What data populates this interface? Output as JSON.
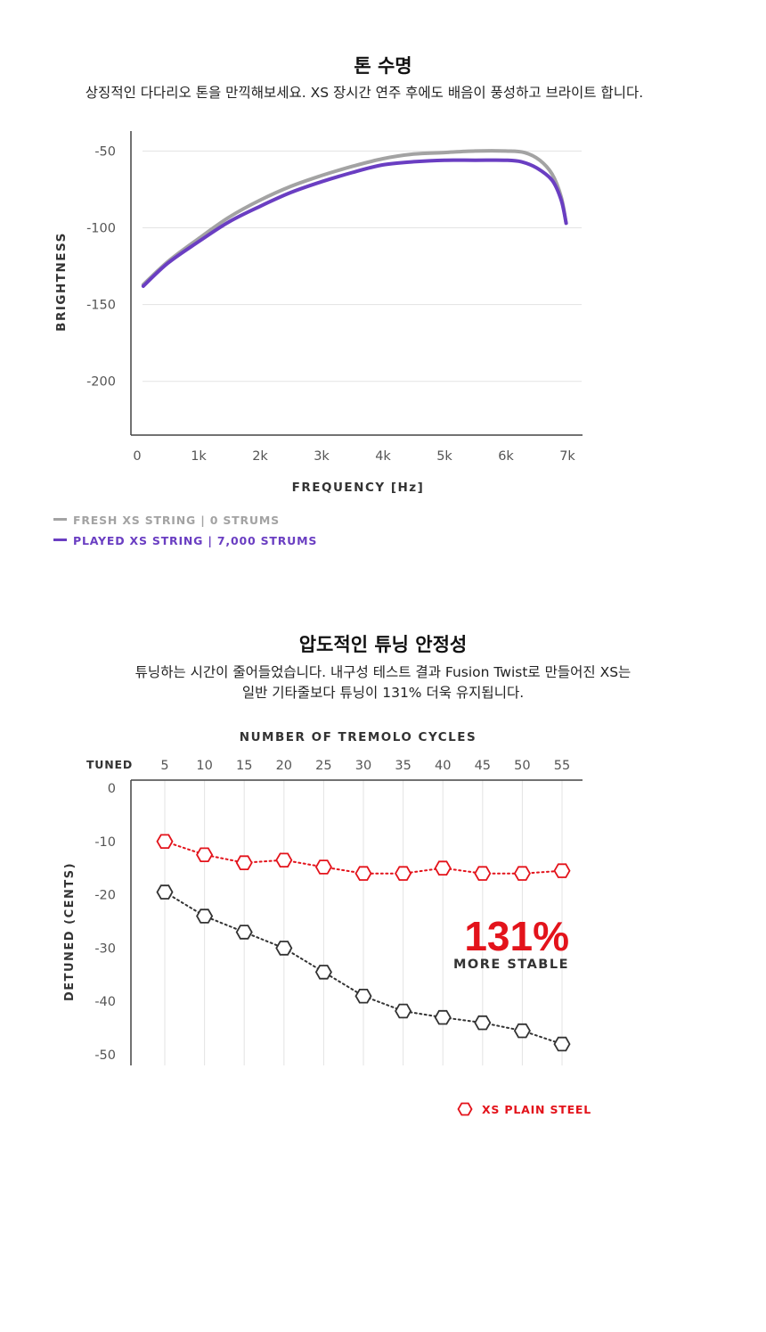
{
  "section1": {
    "title": "톤 수명",
    "description": "상징적인 다다리오 톤을 만끽해보세요. XS 장시간 연주 후에도 배음이 풍성하고 브라이트 합니다."
  },
  "section2": {
    "title": "압도적인 튜닝 안정성",
    "description_line1": "튜닝하는 시간이 줄어들었습니다. 내구성 테스트 결과 Fusion Twist로 만들어진 XS는",
    "description_line2": "일반 기타줄보다 튜닝이 131% 더욱 유지됩니다."
  },
  "colors": {
    "fresh": "#a3a3a3",
    "played": "#6a3ec2",
    "xs": "#e3131b",
    "plain": "#333333",
    "grid": "#e3e3e3",
    "axis": "#444444"
  },
  "chart_data": [
    {
      "type": "line",
      "xlabel": "FREQUENCY [Hz]",
      "ylabel": "BRIGHTNESS",
      "xlim": [
        0,
        7000
      ],
      "ylim": [
        -235,
        -37
      ],
      "x_ticks": [
        0,
        1000,
        2000,
        3000,
        4000,
        5000,
        6000,
        7000
      ],
      "x_tick_labels": [
        "0",
        "1k",
        "2k",
        "3k",
        "4k",
        "5k",
        "6k",
        "7k"
      ],
      "y_ticks": [
        -50,
        -100,
        -150,
        -200
      ],
      "y_tick_labels": [
        "-50",
        "-100",
        "-150",
        "-200"
      ],
      "grid": true,
      "legend_position": "bottom-left",
      "series": [
        {
          "name": "FRESH XS STRING | 0 STRUMS",
          "color_key": "fresh",
          "points": [
            [
              100,
              -137
            ],
            [
              500,
              -122
            ],
            [
              1000,
              -107
            ],
            [
              1500,
              -93
            ],
            [
              2000,
              -82
            ],
            [
              2500,
              -73
            ],
            [
              3000,
              -66
            ],
            [
              3500,
              -60
            ],
            [
              4000,
              -55
            ],
            [
              4500,
              -52
            ],
            [
              5000,
              -51
            ],
            [
              5500,
              -50
            ],
            [
              6000,
              -50
            ],
            [
              6300,
              -51
            ],
            [
              6550,
              -56
            ],
            [
              6750,
              -65
            ],
            [
              6900,
              -80
            ],
            [
              6980,
              -97
            ]
          ]
        },
        {
          "name": "PLAYED XS STRING | 7,000 STRUMS",
          "color_key": "played",
          "points": [
            [
              100,
              -138
            ],
            [
              500,
              -123
            ],
            [
              1000,
              -109
            ],
            [
              1500,
              -96
            ],
            [
              2000,
              -86
            ],
            [
              2500,
              -77
            ],
            [
              3000,
              -70
            ],
            [
              3500,
              -64
            ],
            [
              4000,
              -59
            ],
            [
              4500,
              -57
            ],
            [
              5000,
              -56
            ],
            [
              5500,
              -56
            ],
            [
              6000,
              -56
            ],
            [
              6250,
              -57
            ],
            [
              6500,
              -61
            ],
            [
              6750,
              -69
            ],
            [
              6900,
              -82
            ],
            [
              6980,
              -97
            ]
          ]
        }
      ]
    },
    {
      "type": "line",
      "title": "NUMBER OF TREMOLO CYCLES",
      "ylabel": "DETUNED (CENTS)",
      "x_first_label": "TUNED",
      "categories": [
        5,
        10,
        15,
        20,
        25,
        30,
        35,
        40,
        45,
        50,
        55
      ],
      "ylim": [
        -52,
        1.5
      ],
      "y_ticks": [
        0,
        -10,
        -20,
        -30,
        -40,
        -50
      ],
      "y_tick_labels": [
        "0",
        "-10",
        "-20",
        "-30",
        "-40",
        "-50"
      ],
      "grid": true,
      "legend_position": "bottom-right",
      "annotation": {
        "value": "131%",
        "subtitle": "MORE STABLE"
      },
      "series": [
        {
          "name": "XS PLAIN STEEL",
          "color_key": "xs",
          "values": [
            -10,
            -12.5,
            -14,
            -13.5,
            -14.8,
            -16,
            -16,
            -15,
            -16,
            -16,
            -15.5
          ]
        },
        {
          "color_key": "plain",
          "values": [
            -19.5,
            -24,
            -27,
            -30,
            -34.5,
            -39,
            -41.8,
            -43,
            -44,
            -45.5,
            -48
          ]
        }
      ]
    }
  ]
}
